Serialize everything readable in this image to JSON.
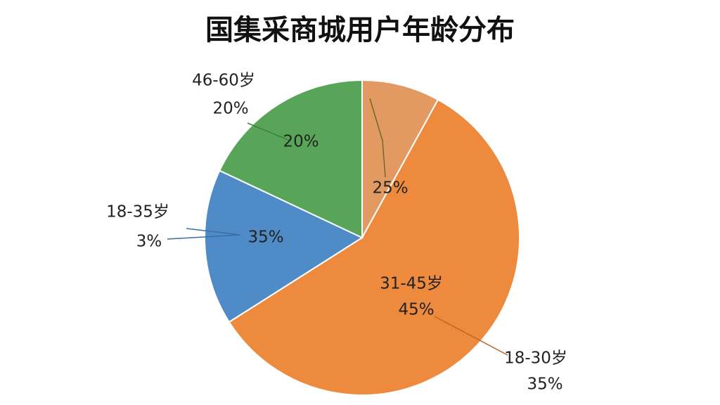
{
  "chart_data": {
    "type": "pie",
    "title": "国集采商城用户年龄分布",
    "values": [
      8,
      58,
      16,
      18
    ],
    "colors": [
      "#e39a62",
      "#ee8a3d",
      "#4f8bc6",
      "#58a559"
    ],
    "annotations": [
      "46-60岁",
      "20%",
      "20%",
      "18-35岁",
      "3%",
      "35%",
      "25%",
      "31-45岁",
      "45%",
      "18-30岁",
      "35%"
    ]
  }
}
